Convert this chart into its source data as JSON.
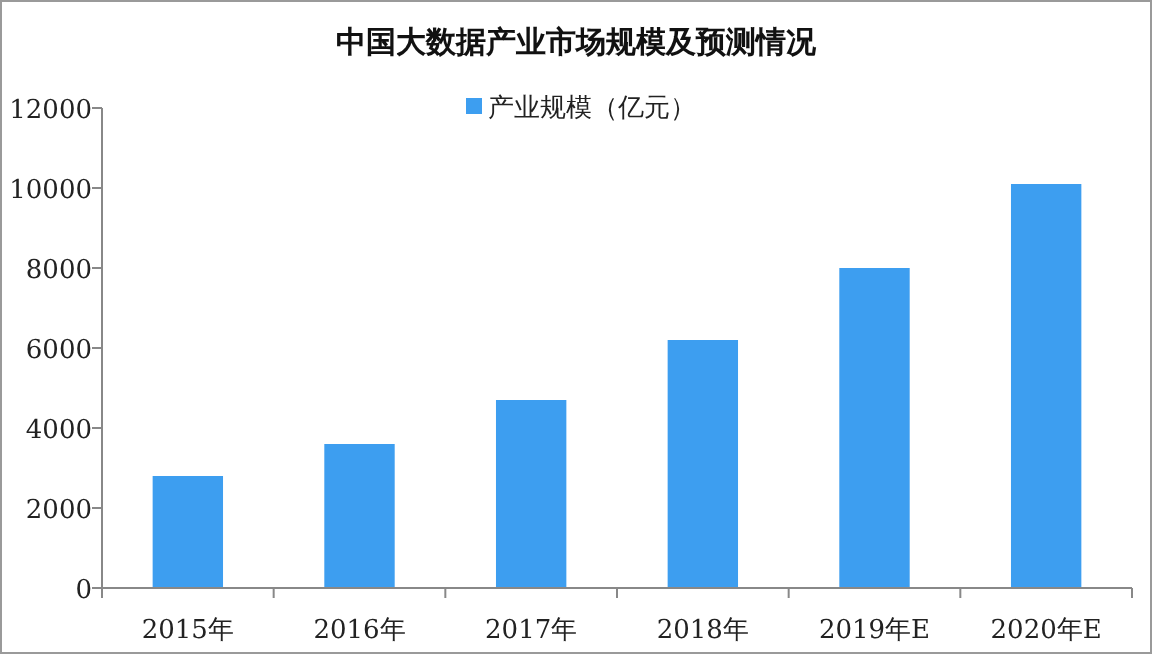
{
  "chart_data": {
    "type": "bar",
    "title": "中国大数据产业市场规模及预测情况",
    "categories": [
      "2015年",
      "2016年",
      "2017年",
      "2018年",
      "2019年E",
      "2020年E"
    ],
    "series": [
      {
        "name": "产业规模（亿元）",
        "color": "#3d9ef0",
        "values": [
          2800,
          3600,
          4700,
          6200,
          8000,
          10100
        ]
      }
    ],
    "ylim": [
      0,
      12000
    ],
    "yticks": [
      0,
      2000,
      4000,
      6000,
      8000,
      10000,
      12000
    ],
    "grid": false,
    "legend": "top"
  }
}
